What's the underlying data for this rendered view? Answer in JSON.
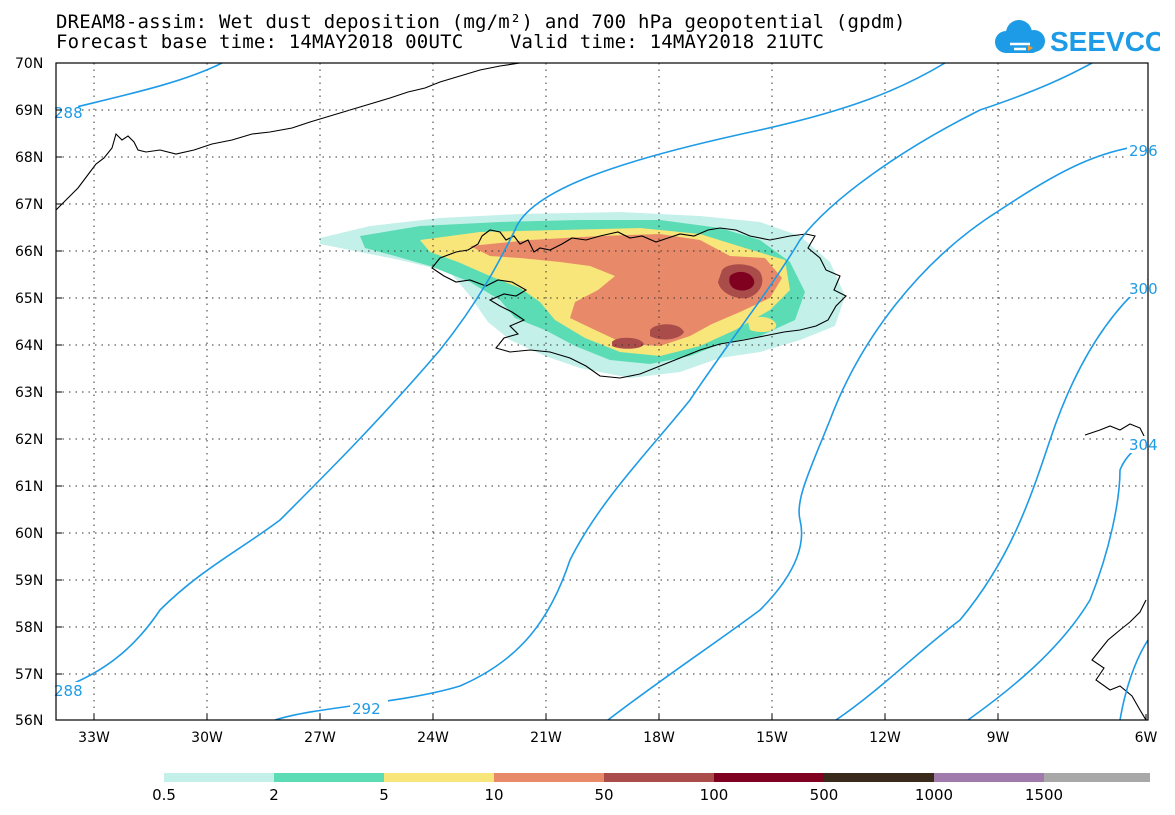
{
  "title_line1": "DREAM8-assim: Wet dust deposition (mg/m²) and 700 hPa geopotential (gpdm)",
  "title_line2": "Forecast base time: 14MAY2018 00UTC    Valid time: 14MAY2018 21UTC",
  "logo_text": "SEEVCCC",
  "colors": {
    "contour": "#1e9be6",
    "coast": "#000000",
    "levels": [
      "#c4f0ea",
      "#5cdcb4",
      "#f8e67a",
      "#e88a6a",
      "#aa4c4a",
      "#800020",
      "#3a2a1c",
      "#a07aaa",
      "#a8a8a8"
    ]
  },
  "lat_labels": [
    "70N",
    "69N",
    "68N",
    "67N",
    "66N",
    "65N",
    "64N",
    "63N",
    "62N",
    "61N",
    "60N",
    "59N",
    "58N",
    "57N",
    "56N"
  ],
  "lon_labels": [
    "33W",
    "30W",
    "27W",
    "24W",
    "21W",
    "18W",
    "15W",
    "12W",
    "9W",
    "6W"
  ],
  "contour_labels": [
    {
      "text": "288"
    },
    {
      "text": "288"
    },
    {
      "text": "292"
    },
    {
      "text": "296"
    },
    {
      "text": "300"
    },
    {
      "text": "304"
    }
  ],
  "colorbar": [
    "0.5",
    "2",
    "5",
    "10",
    "50",
    "100",
    "500",
    "1000",
    "1500"
  ]
}
